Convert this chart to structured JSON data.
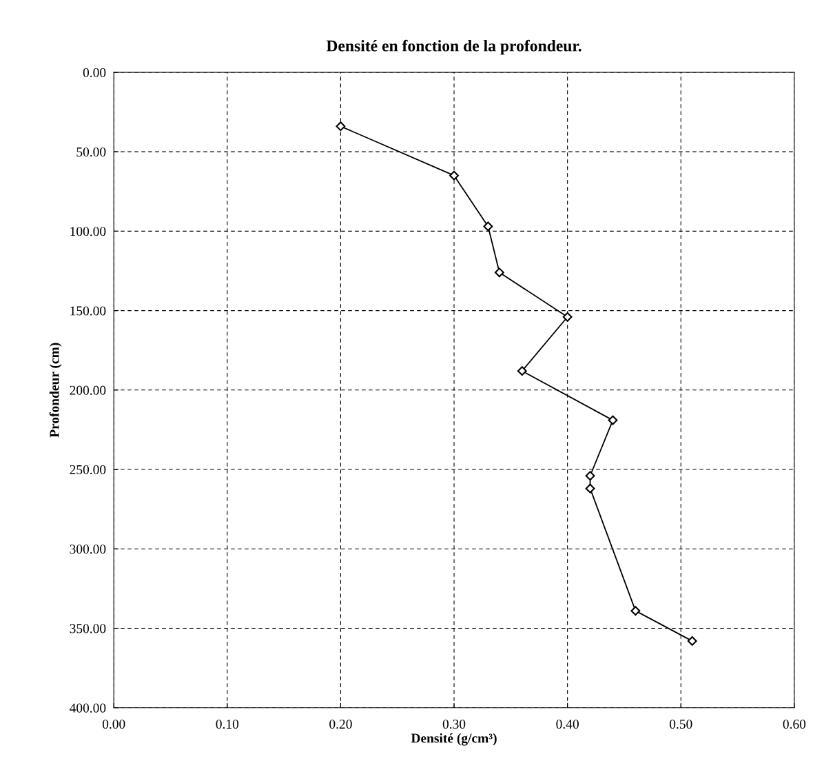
{
  "chart_data": {
    "type": "line",
    "title": "Densité en fonction de la profondeur.",
    "xlabel": "Densité (g/cm³)",
    "ylabel": "Profondeur (cm)",
    "series": [
      {
        "color": "#000000",
        "x": [
          0.2,
          0.3,
          0.33,
          0.34,
          0.4,
          0.36,
          0.44,
          0.42,
          0.42,
          0.46,
          0.51
        ],
        "values": [
          34,
          65,
          97,
          126,
          154,
          188,
          219,
          254,
          262,
          339,
          358
        ]
      }
    ],
    "xlim": [
      0,
      0.6
    ],
    "ylim": [
      400,
      0
    ],
    "xticks": [
      {
        "value": 0,
        "label": "0.00"
      },
      {
        "value": 0.1,
        "label": "0.10"
      },
      {
        "value": 0.2,
        "label": "0.20"
      },
      {
        "value": 0.3,
        "label": "0.30"
      },
      {
        "value": 0.4,
        "label": "0.40"
      },
      {
        "value": 0.5,
        "label": "0.50"
      },
      {
        "value": 0.6,
        "label": "0.60"
      }
    ],
    "yticks": [
      {
        "value": 0,
        "label": "0.00"
      },
      {
        "value": 50,
        "label": "50.00"
      },
      {
        "value": 100,
        "label": "100.00"
      },
      {
        "value": 150,
        "label": "150.00"
      },
      {
        "value": 200,
        "label": "200.00"
      },
      {
        "value": 250,
        "label": "250.00"
      },
      {
        "value": 300,
        "label": "300.00"
      },
      {
        "value": 350,
        "label": "350.00"
      },
      {
        "value": 400,
        "label": "400.00"
      }
    ],
    "grid": true,
    "marker": "diamond",
    "line_style": "solid"
  }
}
